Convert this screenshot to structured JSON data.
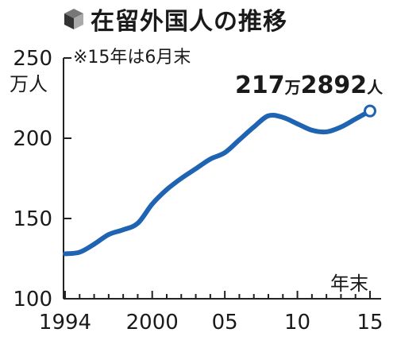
{
  "header": {
    "icon": "cube-icon",
    "title": "在留外国人の推移"
  },
  "note": "※15年は6月末",
  "y_unit": "万人",
  "x_unit": "年末",
  "callout": {
    "value_major": "217",
    "unit_major": "万",
    "value_minor": "2892",
    "unit_minor": "人"
  },
  "colors": {
    "line": "#1f63b3",
    "axis": "#222222",
    "text": "#1a1a1a"
  },
  "chart_data": {
    "type": "line",
    "title": "在留外国人の推移",
    "xlabel": "年末",
    "ylabel": "万人",
    "ylim": [
      100,
      250
    ],
    "xlim": [
      1994,
      2015
    ],
    "y_ticks": [
      "100",
      "150",
      "200",
      "250"
    ],
    "x_ticks": [
      {
        "value": 1994,
        "label": "1994"
      },
      {
        "value": 2000,
        "label": "2000"
      },
      {
        "value": 2005,
        "label": "05"
      },
      {
        "value": 2010,
        "label": "10"
      },
      {
        "value": 2015,
        "label": "15"
      }
    ],
    "grid": false,
    "series": [
      {
        "x": [
          1994,
          1995,
          1996,
          1997,
          1998,
          1999,
          2000,
          2001,
          2002,
          2003,
          2004,
          2005,
          2006,
          2007,
          2008,
          2009,
          2010,
          2011,
          2012,
          2013,
          2014,
          2015
        ],
        "values": [
          128,
          129,
          134,
          140,
          143,
          147,
          159,
          168,
          175,
          181,
          187,
          191,
          199,
          207,
          214,
          213,
          209,
          205,
          204,
          207,
          212,
          217
        ]
      }
    ],
    "annotations": [
      {
        "x": 2015,
        "y": 217.2892,
        "text": "217万2892人"
      }
    ]
  }
}
